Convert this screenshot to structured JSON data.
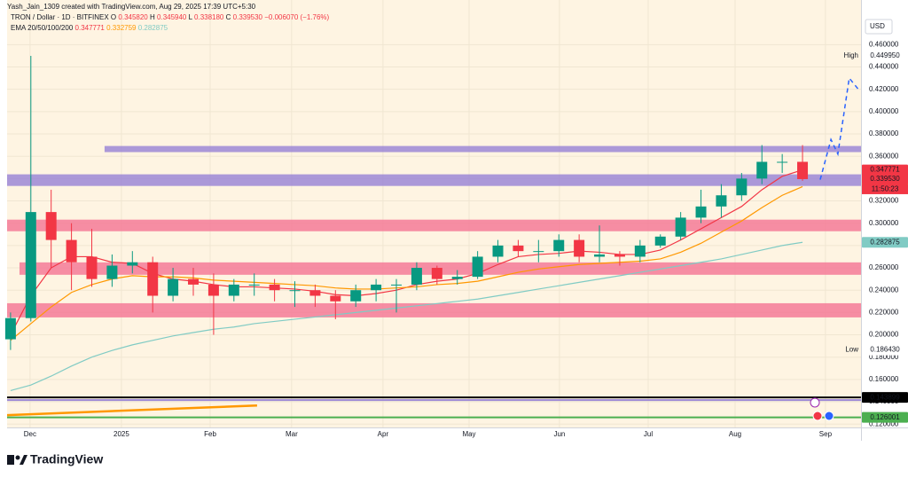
{
  "chart_data": {
    "type": "candlestick",
    "credit": "Yash_Jain_1309 created with TradingView.com, Aug 29, 2025 17:39 UTC+5:30",
    "title": "TRON / Dollar · 1D · BITFINEX",
    "ohlc_legend": [
      {
        "key": "O",
        "value": "0.345820"
      },
      {
        "key": "H",
        "value": "0.345940"
      },
      {
        "key": "L",
        "value": "0.338180"
      },
      {
        "key": "C",
        "value": "0.339530"
      }
    ],
    "change": "−0.006070 (−1.76%)",
    "indicator": "EMA 20/50/100/200",
    "currency": "USD",
    "brand": "TradingView",
    "up_color": "#089981",
    "down_color": "#f23645",
    "open": [
      0.196,
      0.215,
      0.31,
      0.285,
      0.27,
      0.25,
      0.262,
      0.265,
      0.235,
      0.25,
      0.245,
      0.235,
      0.245,
      0.245,
      0.24,
      0.24,
      0.235,
      0.23,
      0.24,
      0.245,
      0.245,
      0.26,
      0.25,
      0.252,
      0.27,
      0.28,
      0.275,
      0.275,
      0.285,
      0.27,
      0.272,
      0.27,
      0.28,
      0.288,
      0.305,
      0.315,
      0.325,
      0.34,
      0.355,
      0.355
    ],
    "high": [
      0.22,
      0.44995,
      0.33,
      0.3,
      0.295,
      0.272,
      0.275,
      0.27,
      0.26,
      0.26,
      0.255,
      0.25,
      0.255,
      0.25,
      0.248,
      0.245,
      0.24,
      0.245,
      0.25,
      0.25,
      0.265,
      0.262,
      0.258,
      0.275,
      0.285,
      0.285,
      0.285,
      0.29,
      0.29,
      0.298,
      0.275,
      0.285,
      0.29,
      0.31,
      0.33,
      0.335,
      0.345,
      0.37,
      0.362,
      0.37
    ],
    "low": [
      0.18643,
      0.212,
      0.26,
      0.24,
      0.243,
      0.243,
      0.255,
      0.22,
      0.23,
      0.235,
      0.2,
      0.23,
      0.235,
      0.23,
      0.225,
      0.225,
      0.214,
      0.225,
      0.23,
      0.22,
      0.24,
      0.245,
      0.245,
      0.25,
      0.265,
      0.27,
      0.265,
      0.27,
      0.265,
      0.265,
      0.262,
      0.265,
      0.278,
      0.285,
      0.3,
      0.305,
      0.32,
      0.335,
      0.345,
      0.338
    ],
    "close": [
      0.215,
      0.31,
      0.285,
      0.265,
      0.25,
      0.262,
      0.265,
      0.235,
      0.25,
      0.245,
      0.235,
      0.245,
      0.245,
      0.24,
      0.24,
      0.235,
      0.23,
      0.24,
      0.245,
      0.245,
      0.26,
      0.25,
      0.252,
      0.27,
      0.28,
      0.275,
      0.275,
      0.285,
      0.27,
      0.272,
      0.27,
      0.28,
      0.288,
      0.305,
      0.315,
      0.325,
      0.34,
      0.355,
      0.355,
      0.33953
    ],
    "series": [
      {
        "color": "#f23645",
        "values": [
          0.2,
          0.235,
          0.26,
          0.27,
          0.27,
          0.265,
          0.264,
          0.255,
          0.25,
          0.248,
          0.245,
          0.243,
          0.243,
          0.242,
          0.241,
          0.239,
          0.236,
          0.235,
          0.237,
          0.24,
          0.245,
          0.248,
          0.25,
          0.255,
          0.263,
          0.27,
          0.272,
          0.273,
          0.275,
          0.274,
          0.272,
          0.272,
          0.276,
          0.285,
          0.295,
          0.305,
          0.315,
          0.33,
          0.342,
          0.347771
        ]
      },
      {
        "color": "#ff9800",
        "values": [
          0.195,
          0.21,
          0.225,
          0.238,
          0.245,
          0.25,
          0.253,
          0.252,
          0.252,
          0.251,
          0.249,
          0.248,
          0.247,
          0.246,
          0.245,
          0.244,
          0.242,
          0.241,
          0.241,
          0.242,
          0.243,
          0.245,
          0.246,
          0.248,
          0.252,
          0.256,
          0.259,
          0.261,
          0.263,
          0.264,
          0.265,
          0.266,
          0.268,
          0.274,
          0.282,
          0.292,
          0.302,
          0.314,
          0.325,
          0.332759
        ]
      },
      {
        "color": "#80cbc4",
        "values": [
          0.15,
          0.155,
          0.163,
          0.172,
          0.18,
          0.186,
          0.191,
          0.195,
          0.199,
          0.202,
          0.205,
          0.207,
          0.21,
          0.212,
          0.214,
          0.216,
          0.218,
          0.22,
          0.222,
          0.224,
          0.226,
          0.228,
          0.23,
          0.232,
          0.235,
          0.238,
          0.241,
          0.244,
          0.247,
          0.25,
          0.253,
          0.256,
          0.259,
          0.262,
          0.265,
          0.268,
          0.272,
          0.276,
          0.28,
          0.282875
        ]
      }
    ],
    "xlim": [
      -0.17,
      41.88
    ],
    "xticks": [
      {
        "value": 0.96,
        "label": "Dec"
      },
      {
        "value": 5.46,
        "label": "2025"
      },
      {
        "value": 9.83,
        "label": "Feb"
      },
      {
        "value": 13.84,
        "label": "Mar"
      },
      {
        "value": 18.34,
        "label": "Apr"
      },
      {
        "value": 22.58,
        "label": "May"
      },
      {
        "value": 27.03,
        "label": "Jun"
      },
      {
        "value": 31.4,
        "label": "Jul"
      },
      {
        "value": 35.68,
        "label": "Aug"
      },
      {
        "value": 40.13,
        "label": "Sep"
      }
    ],
    "ylim": [
      0.117,
      0.5
    ],
    "yticks": [
      {
        "value": 0.12,
        "label": "0.120000"
      },
      {
        "value": 0.14,
        "label": "0.140000"
      },
      {
        "value": 0.16,
        "label": "0.160000"
      },
      {
        "value": 0.18,
        "label": "0.180000"
      },
      {
        "value": 0.2,
        "label": "0.200000"
      },
      {
        "value": 0.22,
        "label": "0.220000"
      },
      {
        "value": 0.24,
        "label": "0.240000"
      },
      {
        "value": 0.26,
        "label": "0.260000"
      },
      {
        "value": 0.28,
        "label": "0.280000"
      },
      {
        "value": 0.3,
        "label": "0.300000"
      },
      {
        "value": 0.32,
        "label": "0.320000"
      },
      {
        "value": 0.34,
        "label": "0.340000"
      },
      {
        "value": 0.36,
        "label": "0.360000"
      },
      {
        "value": 0.38,
        "label": "0.380000"
      },
      {
        "value": 0.4,
        "label": "0.400000"
      },
      {
        "value": 0.42,
        "label": "0.420000"
      },
      {
        "value": 0.44,
        "label": "0.440000"
      },
      {
        "value": 0.46,
        "label": "0.460000"
      }
    ],
    "grid": true,
    "high_mark": {
      "label": "High",
      "value": 0.44995,
      "value_label": "0.449950"
    },
    "low_mark": {
      "label": "Low",
      "value": 0.18643,
      "value_label": "0.186430"
    },
    "close_tag": {
      "value": 0.33953,
      "label": "0.339530",
      "countdown": "11:50:23",
      "color": "#f23645"
    },
    "zones": [
      {
        "from": 4.63,
        "low": 0.3637,
        "high": 0.3692,
        "color": "#9c87d6"
      },
      {
        "from": -0.17,
        "low": 0.3334,
        "high": 0.3438,
        "color": "#9c87d6"
      },
      {
        "from": -0.17,
        "low": 0.2928,
        "high": 0.3032,
        "color": "#f47a98"
      },
      {
        "from": 0.44,
        "low": 0.2538,
        "high": 0.2649,
        "color": "#f47a98"
      },
      {
        "from": -0.17,
        "low": 0.2156,
        "high": 0.2283,
        "color": "#f47a98"
      }
    ],
    "levels": [
      {
        "value": 0.1415,
        "color": "#9c87d6"
      },
      {
        "value": 0.143899,
        "label": "0.143899",
        "color": "#000000"
      },
      {
        "value": 0.126001,
        "label": "0.126001",
        "color": "#4caf50"
      }
    ],
    "trendline": {
      "x": [
        -0.17,
        12.14
      ],
      "y": [
        0.128,
        0.1367
      ],
      "color": "#ff9800"
    },
    "projection": {
      "x": [
        39.87,
        40.4,
        40.74,
        41.3,
        41.75
      ],
      "y": [
        0.339,
        0.375,
        0.362,
        0.43,
        0.42
      ],
      "color": "#2962ff"
    }
  }
}
